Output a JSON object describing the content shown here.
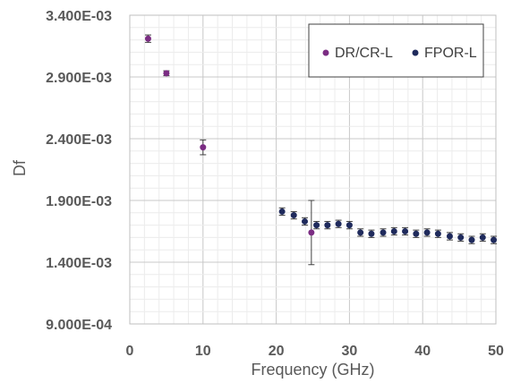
{
  "chart_data": {
    "type": "scatter",
    "xlabel": "Frequency (GHz)",
    "ylabel": "Df",
    "xlim": [
      0,
      50
    ],
    "ylim": [
      0.0009,
      0.0034
    ],
    "x_ticks": [
      0,
      10,
      20,
      30,
      40,
      50
    ],
    "x_tick_labels": [
      "0",
      "10",
      "20",
      "30",
      "40",
      "50"
    ],
    "y_ticks": [
      0.0009,
      0.0014,
      0.0019,
      0.0024,
      0.0029,
      0.0034
    ],
    "y_tick_labels": [
      "9.000E-04",
      "1.400E-03",
      "1.900E-03",
      "2.400E-03",
      "2.900E-03",
      "3.400E-03"
    ],
    "grid": true,
    "legend_position": "top-right",
    "series": [
      {
        "name": "DR/CR-L",
        "color": "#7b2d83",
        "points": [
          {
            "x": 2.5,
            "y": 0.00321,
            "err": 3e-05
          },
          {
            "x": 5.0,
            "y": 0.00293,
            "err": 2e-05
          },
          {
            "x": 10.0,
            "y": 0.00233,
            "err": 6e-05
          },
          {
            "x": 24.8,
            "y": 0.00164,
            "err": 0.00026
          }
        ]
      },
      {
        "name": "FPOR-L",
        "color": "#1f2a5c",
        "points": [
          {
            "x": 20.8,
            "y": 0.00181,
            "err": 3e-05
          },
          {
            "x": 22.4,
            "y": 0.00178,
            "err": 3e-05
          },
          {
            "x": 23.9,
            "y": 0.00173,
            "err": 3e-05
          },
          {
            "x": 25.5,
            "y": 0.0017,
            "err": 3e-05
          },
          {
            "x": 27.0,
            "y": 0.0017,
            "err": 3e-05
          },
          {
            "x": 28.5,
            "y": 0.00171,
            "err": 3e-05
          },
          {
            "x": 30.0,
            "y": 0.0017,
            "err": 3e-05
          },
          {
            "x": 31.5,
            "y": 0.00164,
            "err": 3e-05
          },
          {
            "x": 33.0,
            "y": 0.00163,
            "err": 3e-05
          },
          {
            "x": 34.6,
            "y": 0.00164,
            "err": 3e-05
          },
          {
            "x": 36.1,
            "y": 0.00165,
            "err": 3e-05
          },
          {
            "x": 37.6,
            "y": 0.00165,
            "err": 3e-05
          },
          {
            "x": 39.1,
            "y": 0.00163,
            "err": 3e-05
          },
          {
            "x": 40.6,
            "y": 0.00164,
            "err": 3e-05
          },
          {
            "x": 42.1,
            "y": 0.00163,
            "err": 3e-05
          },
          {
            "x": 43.7,
            "y": 0.00161,
            "err": 3e-05
          },
          {
            "x": 45.2,
            "y": 0.0016,
            "err": 3e-05
          },
          {
            "x": 46.7,
            "y": 0.00158,
            "err": 3e-05
          },
          {
            "x": 48.2,
            "y": 0.0016,
            "err": 3e-05
          },
          {
            "x": 49.7,
            "y": 0.00158,
            "err": 3e-05
          }
        ]
      }
    ]
  }
}
